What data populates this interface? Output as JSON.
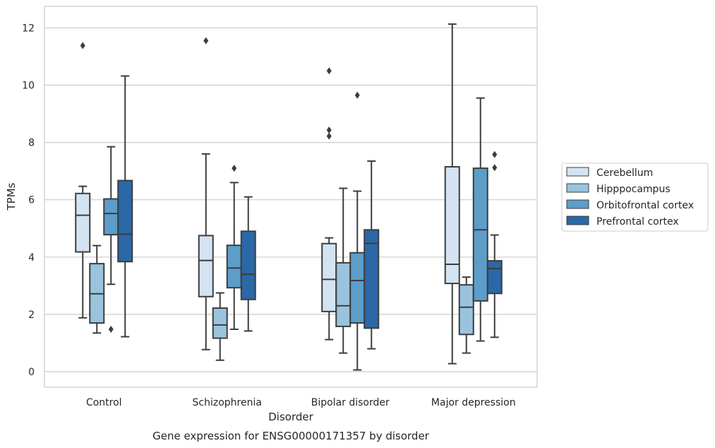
{
  "chart_data": {
    "type": "box",
    "caption": "Gene expression for ENSG00000171357 by disorder",
    "xlabel": "Disorder",
    "ylabel": "TPMs",
    "ylim": [
      -0.5,
      12.7
    ],
    "yticks": [
      0,
      2,
      4,
      6,
      8,
      10,
      12
    ],
    "grid": "horizontal",
    "legend_position": "right",
    "categories": [
      "Control",
      "Schizophrenia",
      "Bipolar disorder",
      "Major depression"
    ],
    "series": [
      {
        "name": "Cerebellum",
        "color": "#d4e3f1",
        "boxes": [
          {
            "whisker_low": 1.88,
            "q1": 4.18,
            "median": 5.46,
            "q3": 6.22,
            "whisker_high": 6.47,
            "outliers": [
              11.38
            ]
          },
          {
            "whisker_low": 0.77,
            "q1": 2.62,
            "median": 3.88,
            "q3": 4.75,
            "whisker_high": 7.6,
            "outliers": [
              11.55
            ]
          },
          {
            "whisker_low": 1.12,
            "q1": 2.1,
            "median": 3.22,
            "q3": 4.47,
            "whisker_high": 4.67,
            "outliers": [
              8.22,
              8.43,
              10.5
            ]
          },
          {
            "whisker_low": 0.28,
            "q1": 3.08,
            "median": 3.75,
            "q3": 7.15,
            "whisker_high": 12.13,
            "outliers": []
          }
        ]
      },
      {
        "name": "Hipppocampus",
        "color": "#9ac3de",
        "boxes": [
          {
            "whisker_low": 1.35,
            "q1": 1.7,
            "median": 2.72,
            "q3": 3.77,
            "whisker_high": 4.4,
            "outliers": []
          },
          {
            "whisker_low": 0.4,
            "q1": 1.17,
            "median": 1.63,
            "q3": 2.22,
            "whisker_high": 2.75,
            "outliers": []
          },
          {
            "whisker_low": 0.65,
            "q1": 1.58,
            "median": 2.3,
            "q3": 3.8,
            "whisker_high": 6.4,
            "outliers": []
          },
          {
            "whisker_low": 0.65,
            "q1": 1.3,
            "median": 2.25,
            "q3": 3.03,
            "whisker_high": 3.3,
            "outliers": []
          }
        ]
      },
      {
        "name": "Orbitofrontal cortex",
        "color": "#5c9dc9",
        "boxes": [
          {
            "whisker_low": 3.05,
            "q1": 4.78,
            "median": 5.52,
            "q3": 6.03,
            "whisker_high": 7.85,
            "outliers": [
              1.48
            ]
          },
          {
            "whisker_low": 1.48,
            "q1": 2.93,
            "median": 3.62,
            "q3": 4.41,
            "whisker_high": 6.6,
            "outliers": [
              7.1
            ]
          },
          {
            "whisker_low": 0.06,
            "q1": 1.7,
            "median": 3.18,
            "q3": 4.15,
            "whisker_high": 6.3,
            "outliers": [
              9.65
            ]
          },
          {
            "whisker_low": 1.07,
            "q1": 2.47,
            "median": 4.95,
            "q3": 7.1,
            "whisker_high": 9.55,
            "outliers": []
          }
        ]
      },
      {
        "name": "Prefrontal cortex",
        "color": "#2a68a8",
        "boxes": [
          {
            "whisker_low": 1.22,
            "q1": 3.84,
            "median": 4.8,
            "q3": 6.67,
            "whisker_high": 10.32,
            "outliers": []
          },
          {
            "whisker_low": 1.42,
            "q1": 2.52,
            "median": 3.4,
            "q3": 4.9,
            "whisker_high": 6.1,
            "outliers": []
          },
          {
            "whisker_low": 0.8,
            "q1": 1.52,
            "median": 4.48,
            "q3": 4.95,
            "whisker_high": 7.35,
            "outliers": []
          },
          {
            "whisker_low": 1.2,
            "q1": 2.73,
            "median": 3.6,
            "q3": 3.87,
            "whisker_high": 4.77,
            "outliers": [
              7.12,
              7.58
            ]
          }
        ]
      }
    ]
  }
}
